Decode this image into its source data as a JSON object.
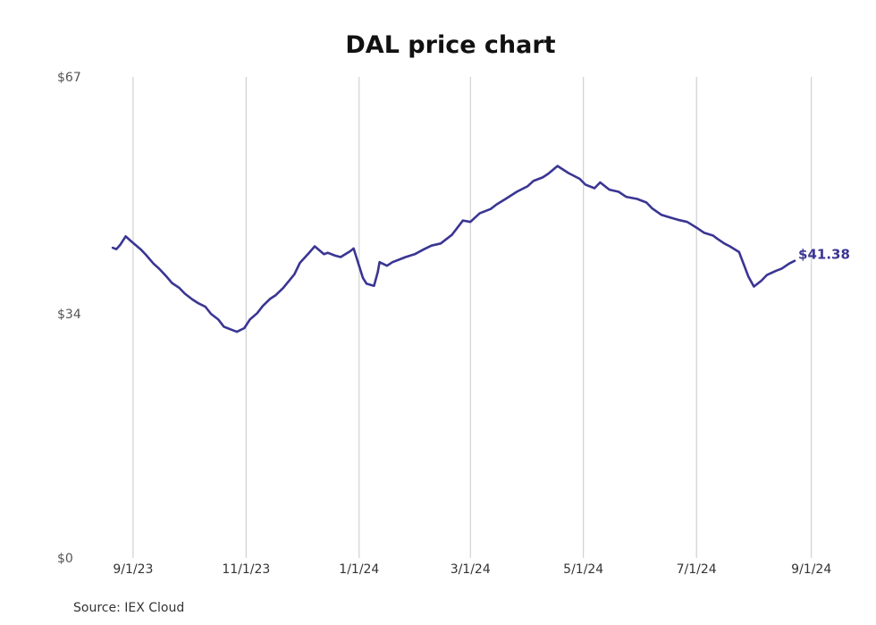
{
  "chart_data": {
    "type": "line",
    "title": "DAL price chart",
    "xlabel": "",
    "ylabel": "",
    "source": "Source: IEX Cloud",
    "ylim": [
      0,
      67
    ],
    "y_ticks": [
      {
        "value": 0,
        "label": "$0"
      },
      {
        "value": 34,
        "label": "$34"
      },
      {
        "value": 67,
        "label": "$67"
      }
    ],
    "x_ticks": [
      "2023-09-01",
      "2023-11-01",
      "2024-01-01",
      "2024-03-01",
      "2024-05-01",
      "2024-07-01",
      "2024-09-01"
    ],
    "x_tick_labels": [
      "9/1/23",
      "11/1/23",
      "1/1/24",
      "3/1/24",
      "5/1/24",
      "7/1/24",
      "9/1/24"
    ],
    "xlim": [
      "2023-08-20",
      "2024-09-05"
    ],
    "grid": "vertical",
    "line_color": "#3a3593",
    "last_value_label": "$41.38",
    "series": [
      {
        "name": "",
        "x": [
          "2023-08-21",
          "2023-08-23",
          "2023-08-25",
          "2023-08-28",
          "2023-08-31",
          "2023-09-05",
          "2023-09-08",
          "2023-09-12",
          "2023-09-15",
          "2023-09-19",
          "2023-09-22",
          "2023-09-26",
          "2023-09-29",
          "2023-10-03",
          "2023-10-06",
          "2023-10-10",
          "2023-10-13",
          "2023-10-17",
          "2023-10-20",
          "2023-10-24",
          "2023-10-27",
          "2023-10-31",
          "2023-11-03",
          "2023-11-07",
          "2023-11-10",
          "2023-11-14",
          "2023-11-17",
          "2023-11-21",
          "2023-11-27",
          "2023-11-30",
          "2023-12-05",
          "2023-12-08",
          "2023-12-13",
          "2023-12-15",
          "2023-12-19",
          "2023-12-22",
          "2023-12-27",
          "2023-12-29",
          "2024-01-03",
          "2024-01-05",
          "2024-01-09",
          "2024-01-11",
          "2024-01-12",
          "2024-01-16",
          "2024-01-19",
          "2024-01-23",
          "2024-01-26",
          "2024-01-31",
          "2024-02-05",
          "2024-02-09",
          "2024-02-14",
          "2024-02-20",
          "2024-02-26",
          "2024-03-01",
          "2024-03-06",
          "2024-03-12",
          "2024-03-15",
          "2024-03-20",
          "2024-03-26",
          "2024-04-01",
          "2024-04-04",
          "2024-04-09",
          "2024-04-12",
          "2024-04-17",
          "2024-04-23",
          "2024-04-29",
          "2024-05-02",
          "2024-05-07",
          "2024-05-10",
          "2024-05-15",
          "2024-05-20",
          "2024-05-24",
          "2024-05-30",
          "2024-06-04",
          "2024-06-07",
          "2024-06-12",
          "2024-06-17",
          "2024-06-21",
          "2024-06-26",
          "2024-07-01",
          "2024-07-05",
          "2024-07-10",
          "2024-07-12",
          "2024-07-16",
          "2024-07-19",
          "2024-07-24",
          "2024-07-29",
          "2024-08-01",
          "2024-08-05",
          "2024-08-08",
          "2024-08-13",
          "2024-08-16",
          "2024-08-20",
          "2024-08-23"
        ],
        "values": [
          43.2,
          43.0,
          43.6,
          44.8,
          44.1,
          43.0,
          42.2,
          41.0,
          40.3,
          39.2,
          38.3,
          37.6,
          36.8,
          36.0,
          35.5,
          35.0,
          34.0,
          33.2,
          32.2,
          31.8,
          31.5,
          32.0,
          33.2,
          34.1,
          35.1,
          36.1,
          36.6,
          37.6,
          39.5,
          41.1,
          42.5,
          43.4,
          42.3,
          42.5,
          42.1,
          41.9,
          42.7,
          43.1,
          39.0,
          38.2,
          37.9,
          39.8,
          41.2,
          40.7,
          41.2,
          41.6,
          41.9,
          42.3,
          43.0,
          43.5,
          43.8,
          45.0,
          47.0,
          46.8,
          48.0,
          48.6,
          49.2,
          50.0,
          51.0,
          51.8,
          52.5,
          53.0,
          53.5,
          54.6,
          53.6,
          52.8,
          52.0,
          51.5,
          52.3,
          51.3,
          51.0,
          50.3,
          50.0,
          49.5,
          48.7,
          47.8,
          47.4,
          47.1,
          46.8,
          46.0,
          45.3,
          44.9,
          44.5,
          43.8,
          43.4,
          42.6,
          39.2,
          37.8,
          38.6,
          39.4,
          40.0,
          40.3,
          41.0,
          41.38
        ]
      }
    ]
  }
}
